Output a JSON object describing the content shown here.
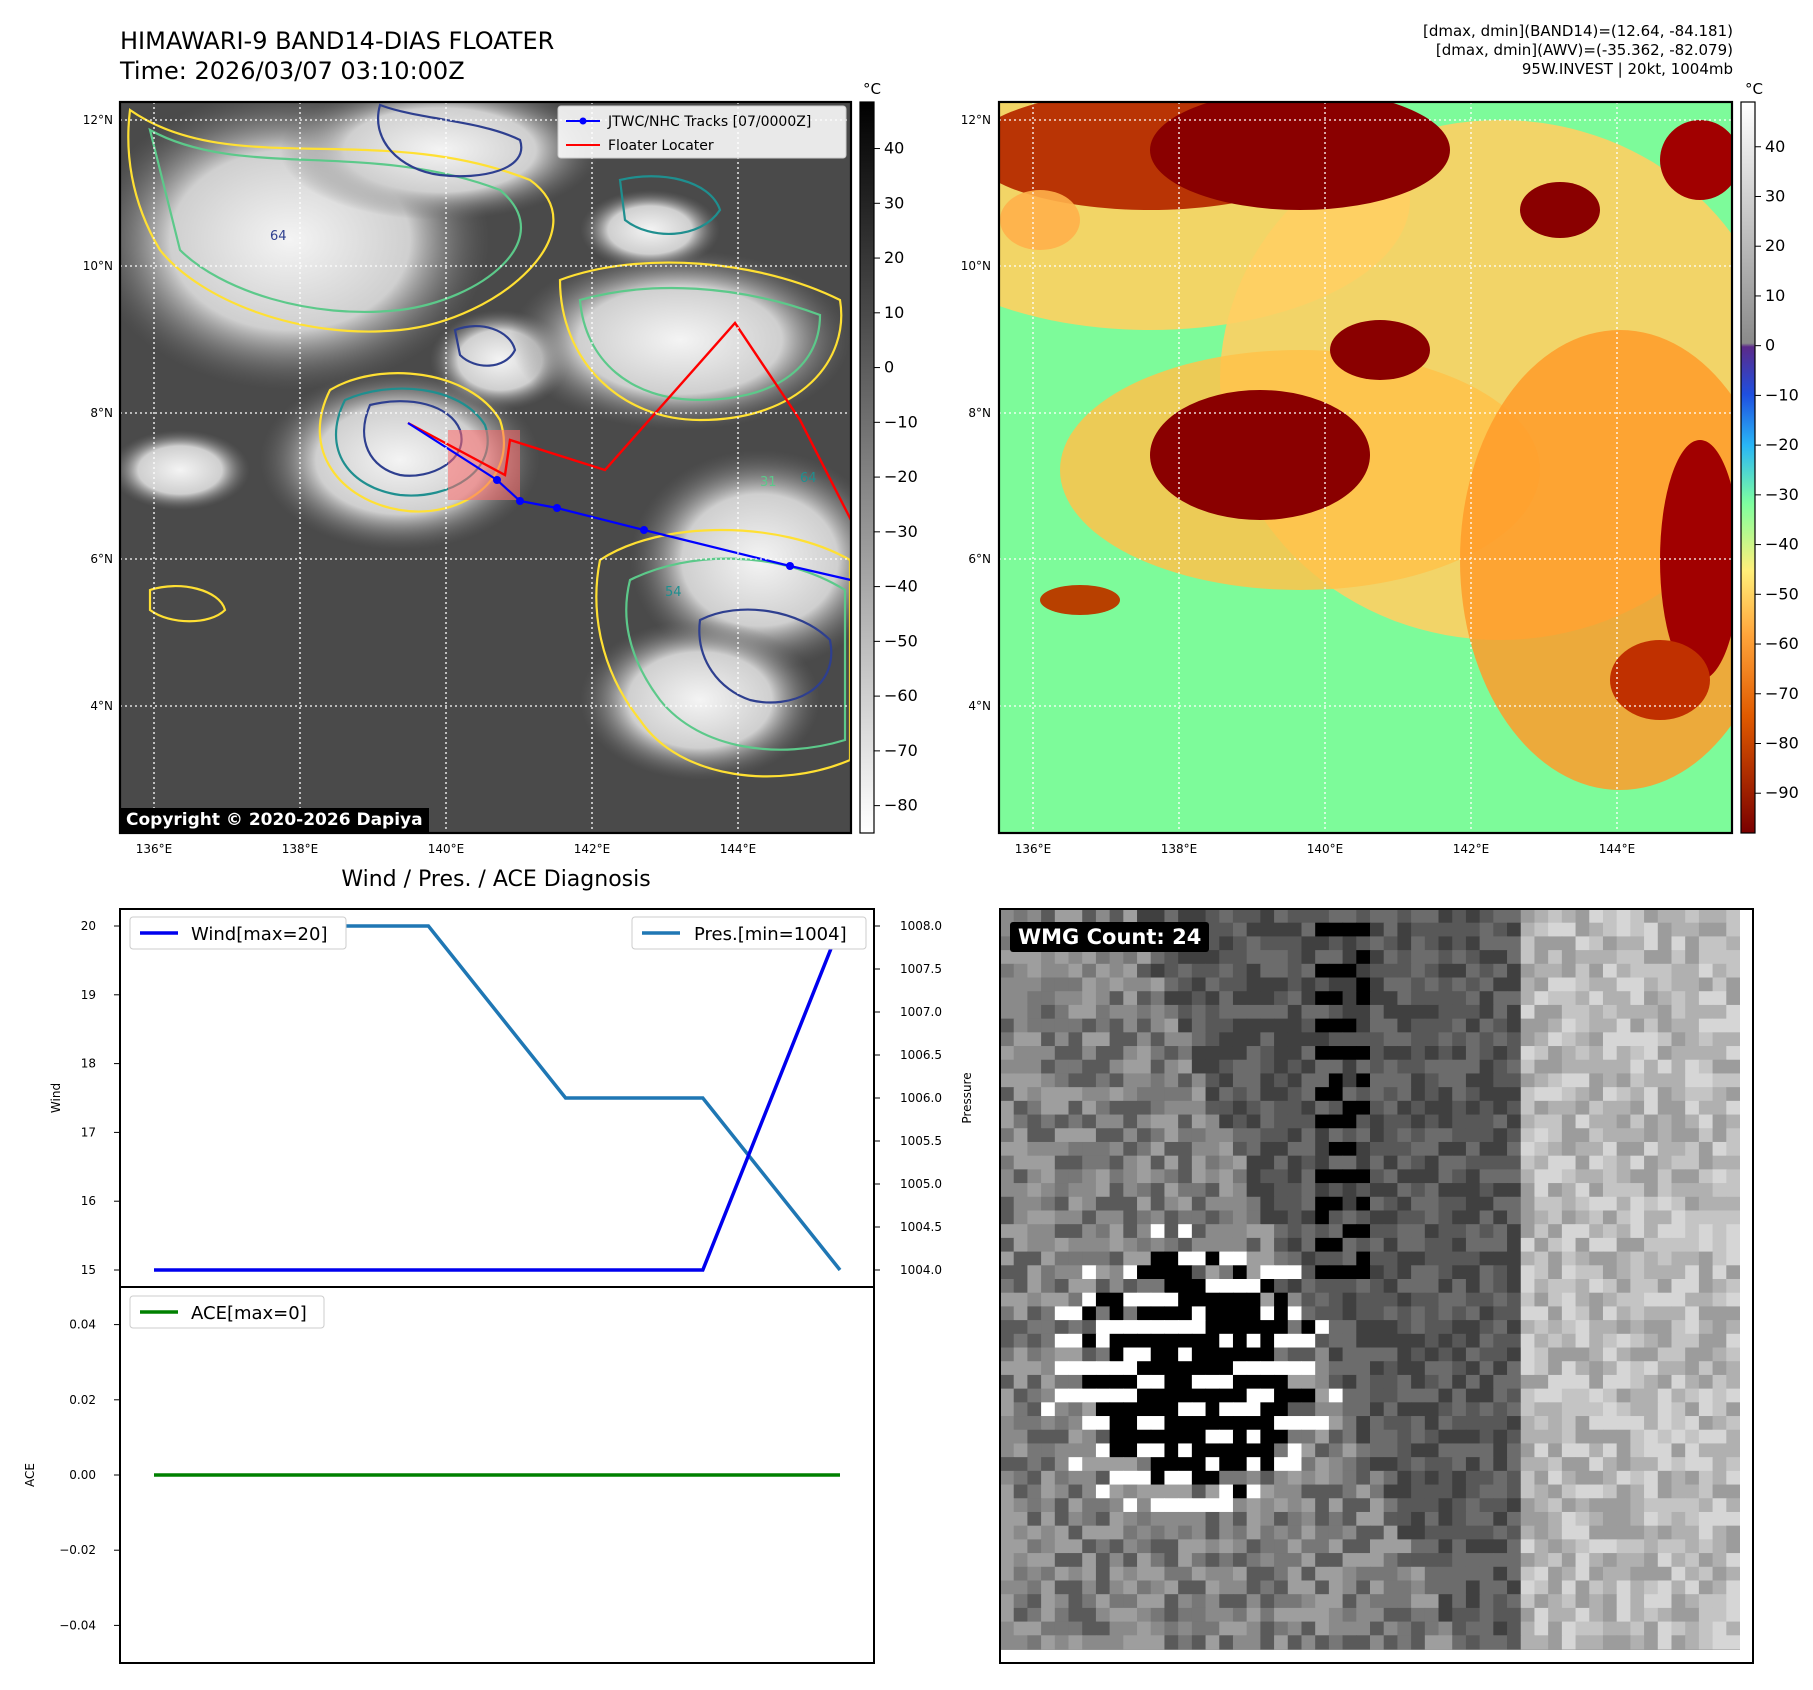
{
  "header": {
    "title": "HIMAWARI-9 BAND14-DIAS FLOATER",
    "time": "Time: 2026/03/07 03:10:00Z",
    "info_line1": "[dmax, dmin](BAND14)=(12.64, -84.181)",
    "info_line2": "[dmax, dmin](AWV)=(-35.362, -82.079)",
    "info_line3": "95W.INVEST | 20kt, 1004mb"
  },
  "maps": {
    "lat_labels": [
      "12°N",
      "10°N",
      "8°N",
      "6°N",
      "4°N"
    ],
    "lon_labels": [
      "136°E",
      "138°E",
      "140°E",
      "142°E",
      "144°E"
    ],
    "copyright": "Copyright © 2020-2026 Dapiya",
    "legend_track": "JTWC/NHC Tracks [07/0000Z]",
    "legend_floater": "Floater Locater",
    "contour_labels": [
      "31",
      "64",
      "54",
      "64"
    ],
    "colorbar1_unit": "°C",
    "colorbar1_ticks": [
      "40",
      "30",
      "20",
      "10",
      "0",
      "−10",
      "−20",
      "−30",
      "−40",
      "−50",
      "−60",
      "−70",
      "−80"
    ],
    "colorbar2_unit": "°C",
    "colorbar2_ticks": [
      "40",
      "30",
      "20",
      "10",
      "0",
      "−10",
      "−20",
      "−30",
      "−40",
      "−50",
      "−60",
      "−70",
      "−80",
      "−90"
    ],
    "colors": {
      "track": "#0000ff",
      "floater": "#ff0000",
      "contour_yellow": "#ffe033",
      "contour_green": "#5cc98a",
      "contour_teal": "#1f8f8f",
      "contour_navy": "#2e3f8f"
    }
  },
  "diagnosis": {
    "title": "Wind / Pres. / ACE Diagnosis",
    "wind_ylabel": "Wind",
    "pressure_ylabel": "Pressure",
    "ace_ylabel": "ACE",
    "legend_wind": "Wind[max=20]",
    "legend_pres": "Pres.[min=1004]",
    "legend_ace": "ACE[max=0]",
    "wind_ticks": [
      "20",
      "19",
      "18",
      "17",
      "16",
      "15"
    ],
    "pres_ticks": [
      "1008.0",
      "1007.5",
      "1007.0",
      "1006.5",
      "1006.0",
      "1005.5",
      "1005.0",
      "1004.5",
      "1004.0"
    ],
    "ace_ticks": [
      "0.04",
      "0.02",
      "0.00",
      "−0.02",
      "−0.04"
    ]
  },
  "wmg": {
    "label": "WMG Count: 24"
  },
  "chart_data": [
    {
      "type": "line",
      "title": "Wind / Pres. / ACE Diagnosis",
      "x": [
        0,
        1,
        2,
        3,
        4,
        5
      ],
      "series": [
        {
          "name": "Wind[max=20]",
          "values": [
            15,
            15,
            15,
            15,
            15,
            20
          ],
          "color": "#0000ee"
        },
        {
          "name": "Pres.[min=1004]",
          "values": [
            1008,
            1008,
            1008,
            1006,
            1006,
            1004
          ],
          "color": "#1f77b4"
        }
      ],
      "wind_ylim": [
        15,
        20
      ],
      "pres_ylim": [
        1004,
        1008
      ]
    },
    {
      "type": "line",
      "x": [
        0,
        1,
        2,
        3,
        4,
        5
      ],
      "series": [
        {
          "name": "ACE[max=0]",
          "values": [
            0,
            0,
            0,
            0,
            0,
            0
          ],
          "color": "#008000"
        }
      ],
      "ylim": [
        -0.05,
        0.05
      ]
    }
  ]
}
